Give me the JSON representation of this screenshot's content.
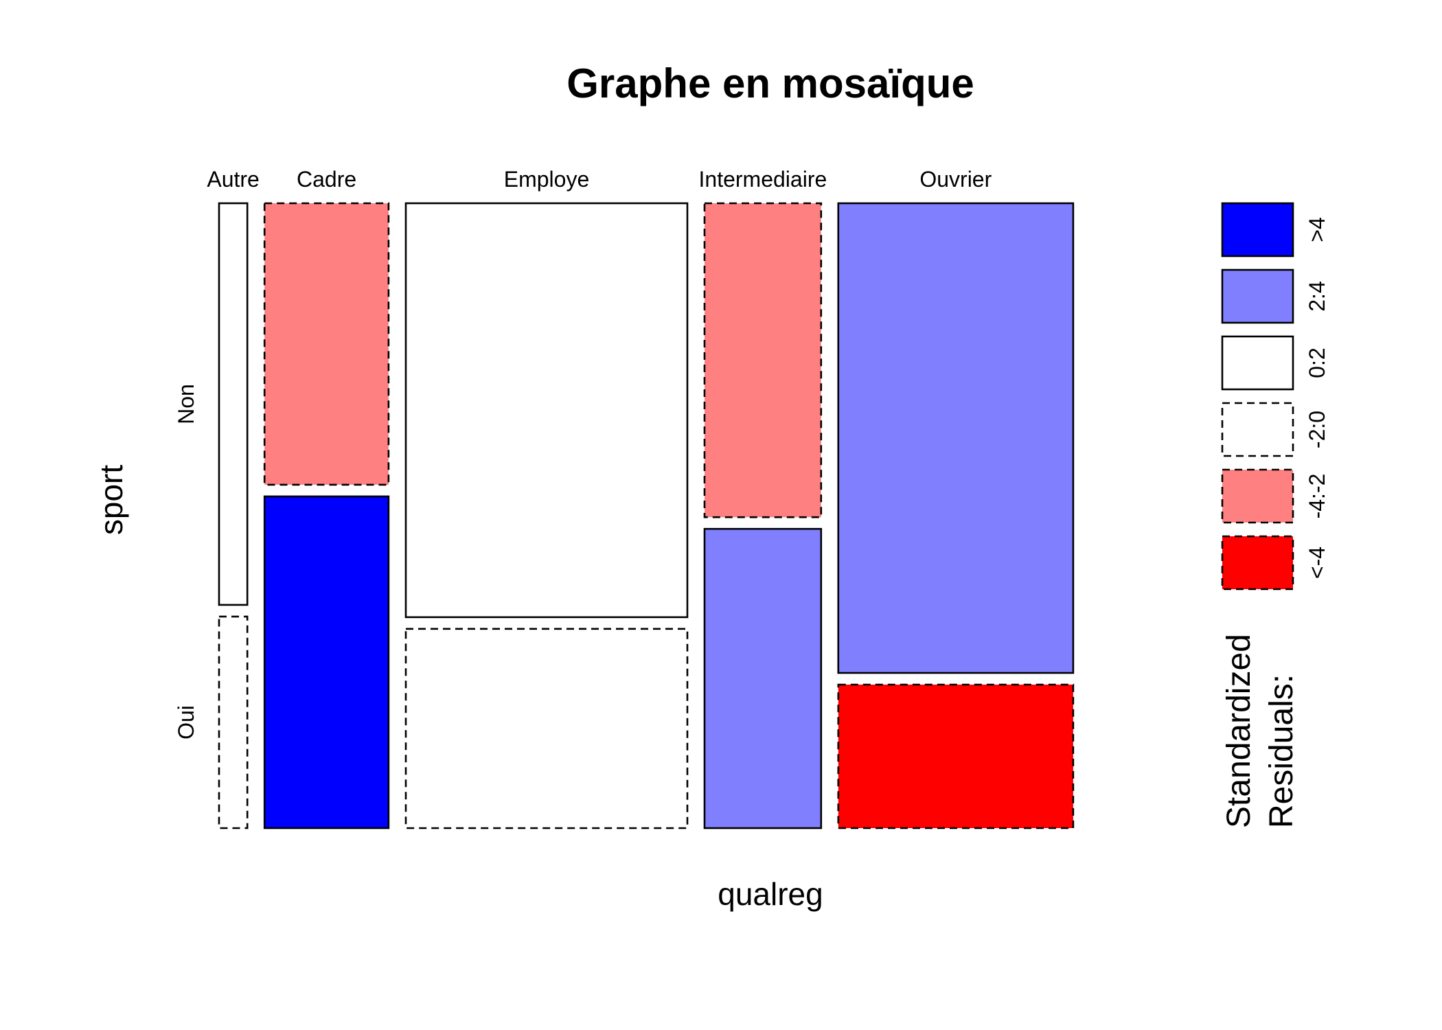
{
  "chart_data": {
    "type": "mosaic",
    "title": "Graphe en mosaïque",
    "xlabel": "qualreg",
    "ylabel": "sport",
    "x_categories": [
      "Autre",
      "Cadre",
      "Employe",
      "Intermediaire",
      "Ouvrier"
    ],
    "y_categories": [
      "Non",
      "Oui"
    ],
    "column_proportions": [
      0.034,
      0.149,
      0.338,
      0.14,
      0.282
    ],
    "non_share": [
      0.655,
      0.459,
      0.675,
      0.512,
      0.766
    ],
    "residual_bins": [
      [
        "0:2",
        "-2:0"
      ],
      [
        "-4:-2",
        ">4"
      ],
      [
        "0:2",
        "-2:0"
      ],
      [
        "-4:-2",
        "2:4"
      ],
      [
        "2:4",
        "<-4"
      ]
    ],
    "legend": {
      "title": [
        "Standardized",
        "Residuals:"
      ],
      "entries": [
        {
          "label": ">4",
          "color": "#0000ff",
          "dashed": false
        },
        {
          "label": "2:4",
          "color": "#8080ff",
          "dashed": false
        },
        {
          "label": "0:2",
          "color": "#ffffff",
          "dashed": false
        },
        {
          "label": "-2:0",
          "color": "#ffffff",
          "dashed": true
        },
        {
          "label": "-4:-2",
          "color": "#ff8080",
          "dashed": true
        },
        {
          "label": "<-4",
          "color": "#ff0000",
          "dashed": true
        }
      ]
    }
  }
}
